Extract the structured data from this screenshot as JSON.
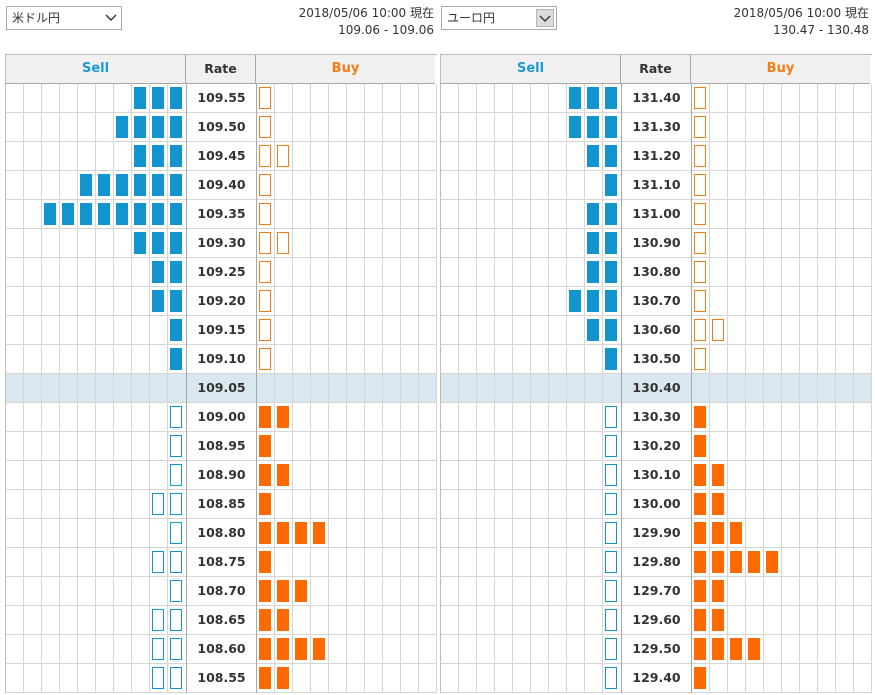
{
  "left": {
    "pair": "米ドル円",
    "timestamp": "2018/05/06 10:00 現在",
    "bidask": "109.06 - 109.06",
    "header": {
      "sell": "Sell",
      "rate": "Rate",
      "buy": "Buy"
    },
    "rows": [
      {
        "rate": "109.55",
        "sell": 3,
        "buy": 1
      },
      {
        "rate": "109.50",
        "sell": 4,
        "buy": 1
      },
      {
        "rate": "109.45",
        "sell": 3,
        "buy": 2
      },
      {
        "rate": "109.40",
        "sell": 6,
        "buy": 1
      },
      {
        "rate": "109.35",
        "sell": 8,
        "buy": 1
      },
      {
        "rate": "109.30",
        "sell": 3,
        "buy": 2
      },
      {
        "rate": "109.25",
        "sell": 2,
        "buy": 1
      },
      {
        "rate": "109.20",
        "sell": 2,
        "buy": 1
      },
      {
        "rate": "109.15",
        "sell": 1,
        "buy": 1
      },
      {
        "rate": "109.10",
        "sell": 1,
        "buy": 1
      },
      {
        "rate": "109.05",
        "sell": 0,
        "buy": 0,
        "mid": true
      },
      {
        "rate": "109.00",
        "sell": 1,
        "buy": 2
      },
      {
        "rate": "108.95",
        "sell": 1,
        "buy": 1
      },
      {
        "rate": "108.90",
        "sell": 1,
        "buy": 2
      },
      {
        "rate": "108.85",
        "sell": 2,
        "buy": 1
      },
      {
        "rate": "108.80",
        "sell": 1,
        "buy": 4
      },
      {
        "rate": "108.75",
        "sell": 2,
        "buy": 1
      },
      {
        "rate": "108.70",
        "sell": 1,
        "buy": 3
      },
      {
        "rate": "108.65",
        "sell": 2,
        "buy": 2
      },
      {
        "rate": "108.60",
        "sell": 2,
        "buy": 4
      },
      {
        "rate": "108.55",
        "sell": 2,
        "buy": 2
      }
    ]
  },
  "right": {
    "pair": "ユーロ円",
    "timestamp": "2018/05/06 10:00 現在",
    "bidask": "130.47 - 130.48",
    "header": {
      "sell": "Sell",
      "rate": "Rate",
      "buy": "Buy"
    },
    "rows": [
      {
        "rate": "131.40",
        "sell": 3,
        "buy": 1
      },
      {
        "rate": "131.30",
        "sell": 3,
        "buy": 1
      },
      {
        "rate": "131.20",
        "sell": 2,
        "buy": 1
      },
      {
        "rate": "131.10",
        "sell": 1,
        "buy": 1
      },
      {
        "rate": "131.00",
        "sell": 2,
        "buy": 1
      },
      {
        "rate": "130.90",
        "sell": 2,
        "buy": 1
      },
      {
        "rate": "130.80",
        "sell": 2,
        "buy": 1
      },
      {
        "rate": "130.70",
        "sell": 3,
        "buy": 1
      },
      {
        "rate": "130.60",
        "sell": 2,
        "buy": 2
      },
      {
        "rate": "130.50",
        "sell": 1,
        "buy": 1
      },
      {
        "rate": "130.40",
        "sell": 0,
        "buy": 0,
        "mid": true
      },
      {
        "rate": "130.30",
        "sell": 1,
        "buy": 1
      },
      {
        "rate": "130.20",
        "sell": 1,
        "buy": 1
      },
      {
        "rate": "130.10",
        "sell": 1,
        "buy": 2
      },
      {
        "rate": "130.00",
        "sell": 1,
        "buy": 2
      },
      {
        "rate": "129.90",
        "sell": 1,
        "buy": 3
      },
      {
        "rate": "129.80",
        "sell": 1,
        "buy": 5
      },
      {
        "rate": "129.70",
        "sell": 1,
        "buy": 2
      },
      {
        "rate": "129.60",
        "sell": 1,
        "buy": 2
      },
      {
        "rate": "129.50",
        "sell": 1,
        "buy": 4
      },
      {
        "rate": "129.40",
        "sell": 1,
        "buy": 1
      }
    ]
  },
  "colors": {
    "sell": "#1295cf",
    "buy": "#ff6a00",
    "mid_row": "#d9e8ee",
    "header_bg": "#f0f0f0"
  },
  "icons": {
    "left_dropdown": "chevron-down-icon",
    "right_dropdown": "chevron-down-icon"
  }
}
